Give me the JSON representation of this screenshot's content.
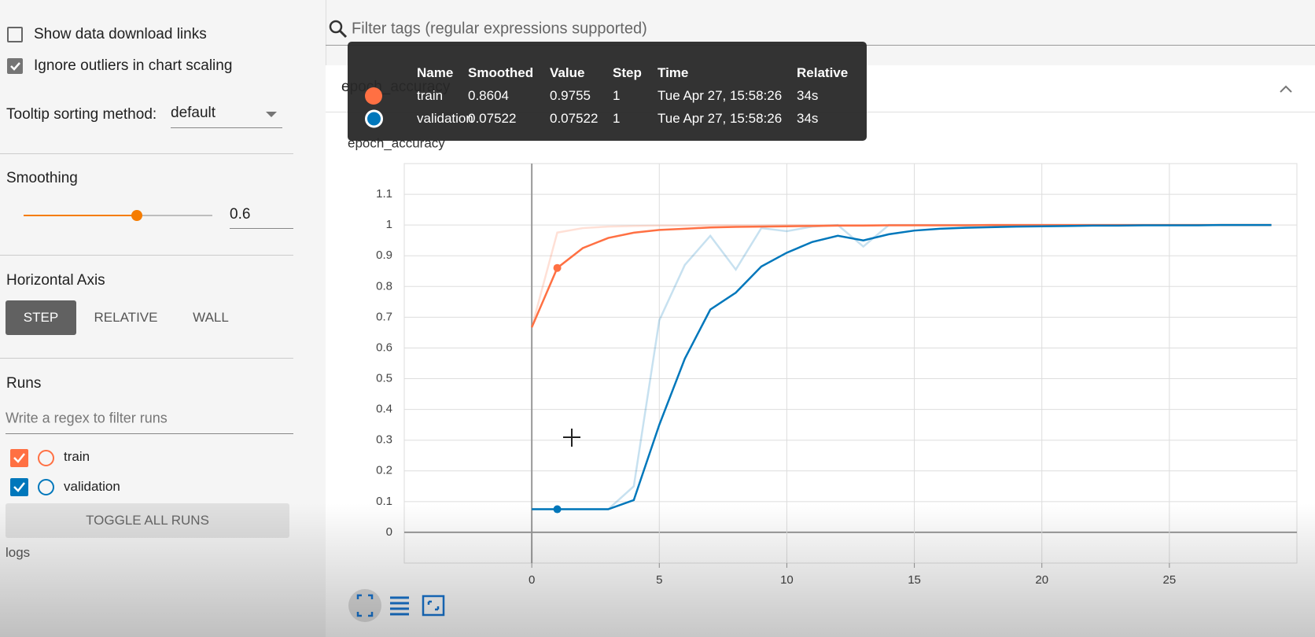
{
  "sidebar": {
    "show_download_links": "Show data download links",
    "ignore_outliers": "Ignore outliers in chart scaling",
    "tooltip_sorting_label": "Tooltip sorting method:",
    "tooltip_sorting_value": "default",
    "smoothing_label": "Smoothing",
    "smoothing": 0.6,
    "horizontal_axis_label": "Horizontal Axis",
    "axis_options": [
      "STEP",
      "RELATIVE",
      "WALL"
    ],
    "runs_label": "Runs",
    "runs_filter_placeholder": "Write a regex to filter runs",
    "toggle_all": "TOGGLE ALL RUNS",
    "logdir": "logs"
  },
  "filter_placeholder": "Filter tags (regular expressions supported)",
  "card_title": "epoch_accuracy",
  "tooltip": {
    "headers": [
      "Name",
      "Smoothed",
      "Value",
      "Step",
      "Time",
      "Relative"
    ],
    "rows": [
      {
        "time": "Tue Apr 27, 15:58:26",
        "relative": "34s"
      },
      {
        "time": "Tue Apr 27, 15:58:26",
        "relative": "34s"
      }
    ]
  },
  "chart_data": {
    "type": "line",
    "title": "epoch_accuracy",
    "x": [
      0,
      1,
      2,
      3,
      4,
      5,
      6,
      7,
      8,
      9,
      10,
      11,
      12,
      13,
      14,
      15,
      16,
      17,
      18,
      19,
      20,
      21,
      22,
      23,
      24,
      25,
      26,
      27,
      28,
      29
    ],
    "series": [
      {
        "name": "train",
        "color": "#ff7043",
        "values": [
          0.667,
          0.8604,
          0.925,
          0.958,
          0.975,
          0.984,
          0.988,
          0.992,
          0.994,
          0.995,
          0.996,
          0.997,
          0.998,
          0.998,
          0.999,
          0.999,
          0.999,
          0.999,
          1,
          1,
          1,
          1,
          1,
          1,
          1,
          1,
          1,
          1,
          1,
          1
        ],
        "raw_values": [
          0.667,
          0.9755,
          0.99,
          0.995,
          0.997,
          0.998,
          0.998,
          0.999,
          0.999,
          0.999,
          1,
          1,
          1,
          1,
          1,
          1,
          1,
          1,
          1,
          1,
          1,
          1,
          1,
          1,
          1,
          1,
          1,
          1,
          1,
          1
        ]
      },
      {
        "name": "validation",
        "color": "#0077bb",
        "values": [
          0.07522,
          0.07522,
          0.07522,
          0.07522,
          0.105,
          0.35,
          0.565,
          0.725,
          0.78,
          0.865,
          0.91,
          0.945,
          0.965,
          0.95,
          0.97,
          0.982,
          0.988,
          0.991,
          0.993,
          0.995,
          0.996,
          0.997,
          0.998,
          0.998,
          0.999,
          0.999,
          0.999,
          1,
          1,
          1
        ],
        "raw_values": [
          0.07522,
          0.07522,
          0.07522,
          0.07522,
          0.15,
          0.69,
          0.87,
          0.965,
          0.855,
          0.99,
          0.98,
          0.995,
          1,
          0.93,
          1,
          1,
          1,
          1,
          1,
          1,
          1,
          1,
          1,
          1,
          1,
          1,
          1,
          1,
          1,
          1
        ]
      }
    ],
    "xlim": [
      -5,
      30
    ],
    "ylim": [
      -0.1,
      1.2
    ],
    "xticks": [
      0,
      5,
      10,
      15,
      20,
      25
    ],
    "yticks": [
      0,
      0.1,
      0.2,
      0.3,
      0.4,
      0.5,
      0.6,
      0.7,
      0.8,
      0.9,
      1,
      1.1
    ],
    "grid": true
  }
}
